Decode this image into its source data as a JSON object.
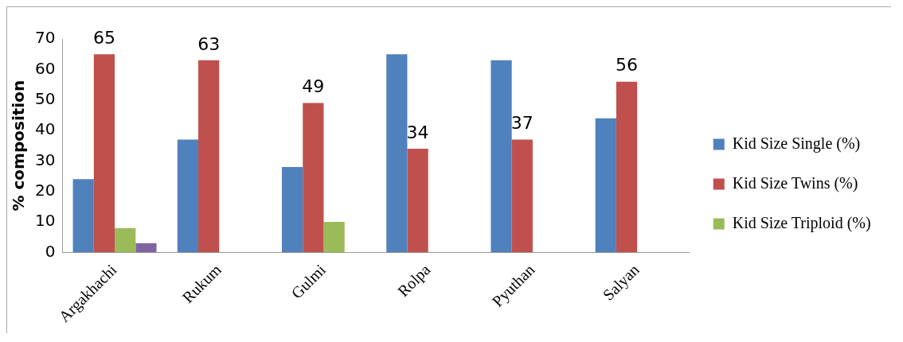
{
  "chart_data": {
    "type": "bar",
    "ylabel": "% composition",
    "categories": [
      "Argakhachi",
      "Rukum",
      "Gulmi",
      "Rolpa",
      "Pyuthan",
      "Salyan"
    ],
    "series": [
      {
        "name": "Kid Size Single (%)",
        "color": "#4f81bd",
        "values": [
          24,
          37,
          28,
          65,
          63,
          44
        ]
      },
      {
        "name": "Kid Size Twins (%)",
        "color": "#c0504d",
        "values": [
          65,
          63,
          49,
          34,
          37,
          56
        ],
        "value_labels": [
          "65",
          "63",
          "49",
          "34",
          "37",
          "56"
        ]
      },
      {
        "name": "Kid Size Triploid (%)",
        "color": "#9bbb59",
        "values": [
          8,
          null,
          10,
          null,
          null,
          null
        ]
      },
      {
        "color": "#8064a2",
        "values": [
          3,
          null,
          null,
          null,
          null,
          null
        ]
      }
    ],
    "ylim": [
      0,
      70
    ],
    "yticks": [
      0,
      10,
      20,
      30,
      40,
      50,
      60,
      70
    ],
    "grid": false,
    "legend": "right"
  }
}
